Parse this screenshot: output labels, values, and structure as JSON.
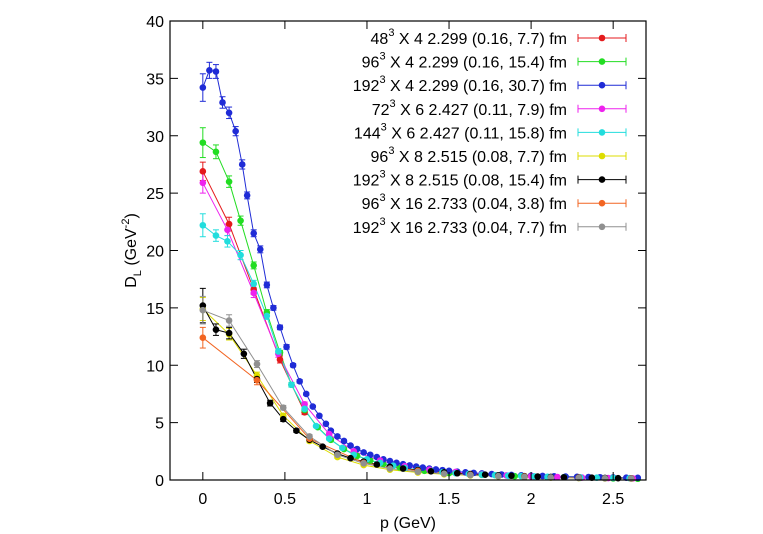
{
  "chart_data": {
    "type": "scatter",
    "xlabel": "p (GeV)",
    "ylabel": {
      "base": "D",
      "sub": "L",
      "unit_open": " (GeV",
      "sup": "-2",
      "unit_close": ")"
    },
    "xlim": [
      -0.2,
      2.7
    ],
    "ylim": [
      0,
      40
    ],
    "xticks": [
      0,
      0.5,
      1,
      1.5,
      2,
      2.5
    ],
    "xtick_labels": [
      "0",
      "0.5",
      "1",
      "1.5",
      "2",
      "2.5"
    ],
    "yticks": [
      0,
      5,
      10,
      15,
      20,
      25,
      30,
      35,
      40
    ],
    "ytick_labels": [
      "0",
      "5",
      "10",
      "15",
      "20",
      "25",
      "30",
      "35",
      "40"
    ],
    "grid": false,
    "legend_position": "top-right",
    "series": [
      {
        "name": "48^3 X 4  2.299  (0.16, 7.7) fm",
        "label": {
          "n": "48",
          "exp": "3",
          "rest": " X 4   2.299   (0.16, 7.7) fm"
        },
        "color": "#e41a1c",
        "x": [
          0,
          0.16,
          0.31,
          0.47,
          0.62
        ],
        "y": [
          26.9,
          22.3,
          16.6,
          10.5,
          5.9
        ],
        "err": [
          0.8,
          0.6,
          0.4,
          0.3,
          0.2
        ]
      },
      {
        "name": "96^3 X 4  2.299  (0.16, 15.4) fm",
        "label": {
          "n": "96",
          "exp": "3",
          "rest": " X 4   2.299   (0.16, 15.4) fm"
        },
        "color": "#22dd22",
        "x": [
          0,
          0.08,
          0.16,
          0.23,
          0.31,
          0.39,
          0.47,
          0.54,
          0.62,
          0.7,
          0.78,
          0.86,
          0.94,
          1.02,
          1.1,
          1.2,
          1.35,
          1.5,
          1.7,
          1.9,
          2.1,
          2.3,
          2.5,
          2.65
        ],
        "y": [
          29.4,
          28.6,
          26.0,
          22.6,
          18.7,
          14.6,
          11.1,
          8.3,
          6.1,
          4.6,
          3.5,
          2.7,
          2.1,
          1.7,
          1.4,
          1.1,
          0.8,
          0.6,
          0.45,
          0.33,
          0.25,
          0.19,
          0.14,
          0.11
        ],
        "err": [
          1.3,
          0.6,
          0.5,
          0.4,
          0.3,
          0.25,
          0.2,
          0.2,
          0.15,
          0.1,
          0.1,
          0.1,
          0.05,
          0.05,
          0.05,
          0.05,
          0.05,
          0.05,
          0.05,
          0.05,
          0.05,
          0.05,
          0.05,
          0.05
        ]
      },
      {
        "name": "192^3 X 4  2.299  (0.16, 30.7) fm",
        "label": {
          "n": "192",
          "exp": "3",
          "rest": " X 4   2.299   (0.16, 30.7) fm"
        },
        "color": "#1f2bd6",
        "x": [
          0,
          0.04,
          0.08,
          0.12,
          0.16,
          0.2,
          0.24,
          0.27,
          0.31,
          0.35,
          0.39,
          0.43,
          0.47,
          0.51,
          0.55,
          0.59,
          0.63,
          0.67,
          0.71,
          0.75,
          0.78,
          0.82,
          0.86,
          0.9,
          0.94,
          0.98,
          1.02,
          1.06,
          1.1,
          1.14,
          1.18,
          1.22,
          1.26,
          1.3,
          1.34,
          1.38,
          1.42,
          1.46,
          1.5,
          1.55,
          1.6,
          1.65,
          1.7,
          1.76,
          1.82,
          1.88,
          1.94,
          2.0,
          2.07,
          2.14,
          2.21,
          2.28,
          2.35,
          2.42,
          2.5,
          2.58,
          2.65
        ],
        "y": [
          34.2,
          35.7,
          35.6,
          32.9,
          32.0,
          30.4,
          27.5,
          24.8,
          21.5,
          20.1,
          17.0,
          15.0,
          13.3,
          11.6,
          10.0,
          8.6,
          7.5,
          6.4,
          5.6,
          4.9,
          4.3,
          3.8,
          3.4,
          3.0,
          2.7,
          2.4,
          2.2,
          2.0,
          1.8,
          1.65,
          1.5,
          1.38,
          1.27,
          1.17,
          1.08,
          1.0,
          0.92,
          0.86,
          0.8,
          0.73,
          0.67,
          0.62,
          0.57,
          0.52,
          0.48,
          0.44,
          0.41,
          0.38,
          0.35,
          0.32,
          0.3,
          0.28,
          0.26,
          0.24,
          0.22,
          0.2,
          0.19
        ],
        "err": [
          1.2,
          0.7,
          0.6,
          0.5,
          0.5,
          0.4,
          0.4,
          0.3,
          0.3,
          0.3,
          0.25,
          0.2,
          0.2,
          0.2,
          0.15,
          0.15,
          0.1,
          0.1,
          0.1,
          0.1,
          0.1,
          0.1,
          0.1,
          0.05,
          0.05,
          0.05,
          0.05,
          0.05,
          0.05,
          0.05,
          0.05,
          0.05,
          0.05,
          0.05,
          0.05,
          0.05,
          0.05,
          0.05,
          0.05,
          0.05,
          0.05,
          0.05,
          0.05,
          0.05,
          0.05,
          0.05,
          0.05,
          0.05,
          0.05,
          0.05,
          0.05,
          0.05,
          0.05,
          0.05,
          0.05,
          0.05,
          0.05
        ]
      },
      {
        "name": "72^3 X 6  2.427  (0.11, 7.9) fm",
        "label": {
          "n": "72",
          "exp": "3",
          "rest": " X 6   2.427   (0.11, 7.9) fm"
        },
        "color": "#ee22ee",
        "x": [
          0,
          0.15,
          0.31,
          0.46,
          0.62,
          0.77,
          0.92,
          1.08,
          1.23,
          1.38,
          1.54,
          1.7,
          1.85,
          2.0,
          2.16,
          2.31,
          2.47,
          2.62
        ],
        "y": [
          25.9,
          21.8,
          16.3,
          11.0,
          6.6,
          4.0,
          2.5,
          1.7,
          1.2,
          0.9,
          0.7,
          0.5,
          0.4,
          0.32,
          0.26,
          0.21,
          0.17,
          0.14
        ],
        "err": [
          0.9,
          0.5,
          0.4,
          0.3,
          0.2,
          0.15,
          0.1,
          0.05,
          0.05,
          0.05,
          0.05,
          0.05,
          0.05,
          0.05,
          0.05,
          0.05,
          0.05,
          0.05
        ]
      },
      {
        "name": "144^3 X 6  2.427  (0.11, 15.8) fm",
        "label": {
          "n": "144",
          "exp": "3",
          "rest": " X 6   2.427   (0.11, 15.8) fm"
        },
        "color": "#22dddd",
        "x": [
          0,
          0.08,
          0.15,
          0.23,
          0.31,
          0.39,
          0.46,
          0.54,
          0.62,
          0.69,
          0.77,
          0.85,
          0.92,
          1.0,
          1.08,
          1.16,
          1.23,
          1.31,
          1.39,
          1.46,
          1.54,
          1.62,
          1.7,
          1.78,
          1.86,
          1.94,
          2.02,
          2.1,
          2.2,
          2.3,
          2.4,
          2.5,
          2.6
        ],
        "y": [
          22.2,
          21.3,
          20.8,
          19.6,
          17.1,
          14.3,
          11.2,
          8.3,
          6.2,
          4.7,
          3.6,
          2.8,
          2.2,
          1.8,
          1.5,
          1.25,
          1.05,
          0.9,
          0.78,
          0.68,
          0.6,
          0.53,
          0.47,
          0.42,
          0.38,
          0.34,
          0.31,
          0.28,
          0.25,
          0.22,
          0.2,
          0.18,
          0.16
        ],
        "err": [
          1.0,
          0.5,
          0.5,
          0.4,
          0.3,
          0.3,
          0.25,
          0.2,
          0.15,
          0.1,
          0.1,
          0.1,
          0.05,
          0.05,
          0.05,
          0.05,
          0.05,
          0.05,
          0.05,
          0.05,
          0.05,
          0.05,
          0.05,
          0.05,
          0.05,
          0.05,
          0.05,
          0.05,
          0.05,
          0.05,
          0.05,
          0.05,
          0.05
        ]
      },
      {
        "name": "96^3 X 8  2.515  (0.08, 7.7) fm",
        "label": {
          "n": "96",
          "exp": "3",
          "rest": " X 8   2.515   (0.08, 7.7) fm"
        },
        "color": "#dddd00",
        "x": [
          0,
          0.16,
          0.33,
          0.49,
          0.65,
          0.82,
          0.98,
          1.14,
          1.31,
          1.47,
          1.63,
          1.8,
          1.96,
          2.12,
          2.29,
          2.45,
          2.61
        ],
        "y": [
          14.9,
          12.7,
          9.1,
          5.6,
          3.4,
          2.0,
          1.3,
          0.9,
          0.65,
          0.5,
          0.4,
          0.32,
          0.26,
          0.21,
          0.17,
          0.14,
          0.12
        ],
        "err": [
          1.0,
          0.5,
          0.3,
          0.2,
          0.15,
          0.1,
          0.05,
          0.05,
          0.05,
          0.05,
          0.05,
          0.05,
          0.05,
          0.05,
          0.05,
          0.05,
          0.05
        ]
      },
      {
        "name": "192^3 X 8  2.515  (0.08, 15.4) fm",
        "label": {
          "n": "192",
          "exp": "3",
          "rest": " X 8   2.515   (0.08, 15.4) fm"
        },
        "color": "#000000",
        "x": [
          0,
          0.08,
          0.16,
          0.25,
          0.33,
          0.41,
          0.49,
          0.57,
          0.65,
          0.73,
          0.82,
          0.9,
          0.98,
          1.06,
          1.14,
          1.22,
          1.31,
          1.39,
          1.47,
          1.55,
          1.63,
          1.72,
          1.8,
          1.88,
          1.96,
          2.04,
          2.12,
          2.2,
          2.29,
          2.37,
          2.45,
          2.53,
          2.61
        ],
        "y": [
          15.2,
          13.1,
          12.8,
          11.0,
          8.8,
          6.7,
          5.3,
          4.3,
          3.5,
          2.9,
          2.3,
          1.9,
          1.6,
          1.35,
          1.15,
          1.0,
          0.87,
          0.76,
          0.67,
          0.59,
          0.52,
          0.46,
          0.41,
          0.37,
          0.33,
          0.3,
          0.27,
          0.24,
          0.22,
          0.2,
          0.18,
          0.16,
          0.15
        ],
        "err": [
          1.5,
          0.5,
          0.5,
          0.4,
          0.3,
          0.25,
          0.2,
          0.15,
          0.1,
          0.1,
          0.1,
          0.05,
          0.05,
          0.05,
          0.05,
          0.05,
          0.05,
          0.05,
          0.05,
          0.05,
          0.05,
          0.05,
          0.05,
          0.05,
          0.05,
          0.05,
          0.05,
          0.05,
          0.05,
          0.05,
          0.05,
          0.05,
          0.05
        ]
      },
      {
        "name": "96^3 X 16  2.733  (0.04, 3.8) fm",
        "label": {
          "n": "96",
          "exp": "3",
          "rest": " X 16   2.733   (0.04, 3.8) fm"
        },
        "color": "#f26522",
        "x": [
          0,
          0.33,
          0.65,
          0.98,
          1.31,
          1.63,
          1.96,
          2.29,
          2.61
        ],
        "y": [
          12.4,
          8.7,
          3.6,
          1.5,
          0.8,
          0.45,
          0.3,
          0.2,
          0.14
        ],
        "err": [
          0.9,
          0.4,
          0.2,
          0.1,
          0.05,
          0.05,
          0.05,
          0.05,
          0.05
        ]
      },
      {
        "name": "192^3 X 16  2.733  (0.04, 7.7) fm",
        "label": {
          "n": "192",
          "exp": "3",
          "rest": " X 16   2.733   (0.04, 7.7) fm"
        },
        "color": "#909090",
        "x": [
          0,
          0.16,
          0.33,
          0.49,
          0.65,
          0.82,
          0.98,
          1.14,
          1.31,
          1.47,
          1.63,
          1.8,
          1.96,
          2.12,
          2.29,
          2.45,
          2.61
        ],
        "y": [
          14.8,
          13.9,
          10.1,
          6.3,
          3.8,
          2.2,
          1.45,
          1.0,
          0.72,
          0.55,
          0.43,
          0.34,
          0.27,
          0.22,
          0.18,
          0.15,
          0.13
        ],
        "err": [
          1.2,
          0.5,
          0.3,
          0.2,
          0.15,
          0.1,
          0.05,
          0.05,
          0.05,
          0.05,
          0.05,
          0.05,
          0.05,
          0.05,
          0.05,
          0.05,
          0.05
        ]
      }
    ]
  }
}
